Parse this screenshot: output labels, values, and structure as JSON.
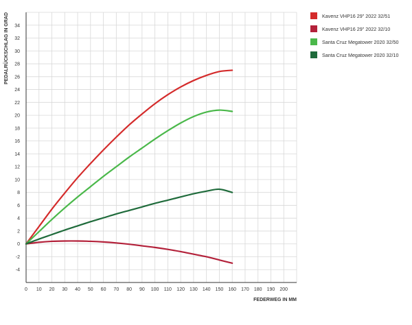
{
  "chart_data": {
    "type": "line",
    "xlabel": "FEDERWEG IN MM",
    "ylabel": "PEDALRÜCKSCHLAG IN GRAD",
    "xlim": [
      0,
      210
    ],
    "ylim": [
      -6,
      36
    ],
    "x_ticks": [
      0,
      10,
      20,
      30,
      40,
      50,
      60,
      70,
      80,
      90,
      100,
      110,
      120,
      130,
      140,
      150,
      160,
      170,
      180,
      190,
      200
    ],
    "y_ticks": [
      -4,
      -2,
      0,
      2,
      4,
      6,
      8,
      10,
      12,
      14,
      16,
      18,
      20,
      22,
      24,
      26,
      28,
      30,
      32,
      34
    ],
    "grid": true,
    "legend_position": "top-right",
    "series": [
      {
        "name": "Kavenz VHP16 29\" 2022 32/51",
        "color": "#d42b2b",
        "x": [
          0,
          10,
          20,
          30,
          40,
          50,
          60,
          70,
          80,
          90,
          100,
          110,
          120,
          130,
          140,
          150,
          160
        ],
        "y": [
          0,
          2.7,
          5.4,
          7.9,
          10.3,
          12.5,
          14.6,
          16.6,
          18.5,
          20.2,
          21.8,
          23.2,
          24.4,
          25.4,
          26.2,
          26.8,
          27.0
        ]
      },
      {
        "name": "Kavenz VHP16 29\" 2022 32/10",
        "color": "#b3213a",
        "x": [
          0,
          10,
          20,
          30,
          40,
          50,
          60,
          70,
          80,
          90,
          100,
          110,
          120,
          130,
          140,
          150,
          160
        ],
        "y": [
          0,
          0.25,
          0.4,
          0.45,
          0.45,
          0.4,
          0.3,
          0.15,
          -0.05,
          -0.3,
          -0.55,
          -0.85,
          -1.2,
          -1.6,
          -2.0,
          -2.5,
          -3.0
        ]
      },
      {
        "name": "Santa Cruz Megatower 2020 32/50",
        "color": "#4ab84a",
        "x": [
          0,
          10,
          20,
          30,
          40,
          50,
          60,
          70,
          80,
          90,
          100,
          110,
          120,
          130,
          140,
          150,
          160
        ],
        "y": [
          0,
          1.9,
          3.8,
          5.6,
          7.3,
          8.9,
          10.5,
          12.0,
          13.5,
          14.9,
          16.3,
          17.6,
          18.8,
          19.8,
          20.5,
          20.8,
          20.6
        ]
      },
      {
        "name": "Santa Cruz Megatower 2020 32/10",
        "color": "#1f6b3b",
        "x": [
          0,
          10,
          20,
          30,
          40,
          50,
          60,
          70,
          80,
          90,
          100,
          110,
          120,
          130,
          140,
          150,
          160
        ],
        "y": [
          0,
          0.75,
          1.45,
          2.15,
          2.8,
          3.45,
          4.05,
          4.65,
          5.2,
          5.75,
          6.3,
          6.8,
          7.3,
          7.8,
          8.2,
          8.5,
          8.0
        ]
      }
    ]
  }
}
